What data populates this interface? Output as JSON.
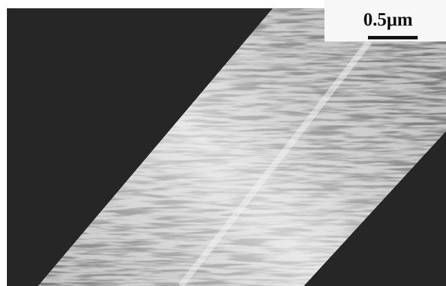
{
  "scale_bar": {
    "label": "0.5μm"
  }
}
